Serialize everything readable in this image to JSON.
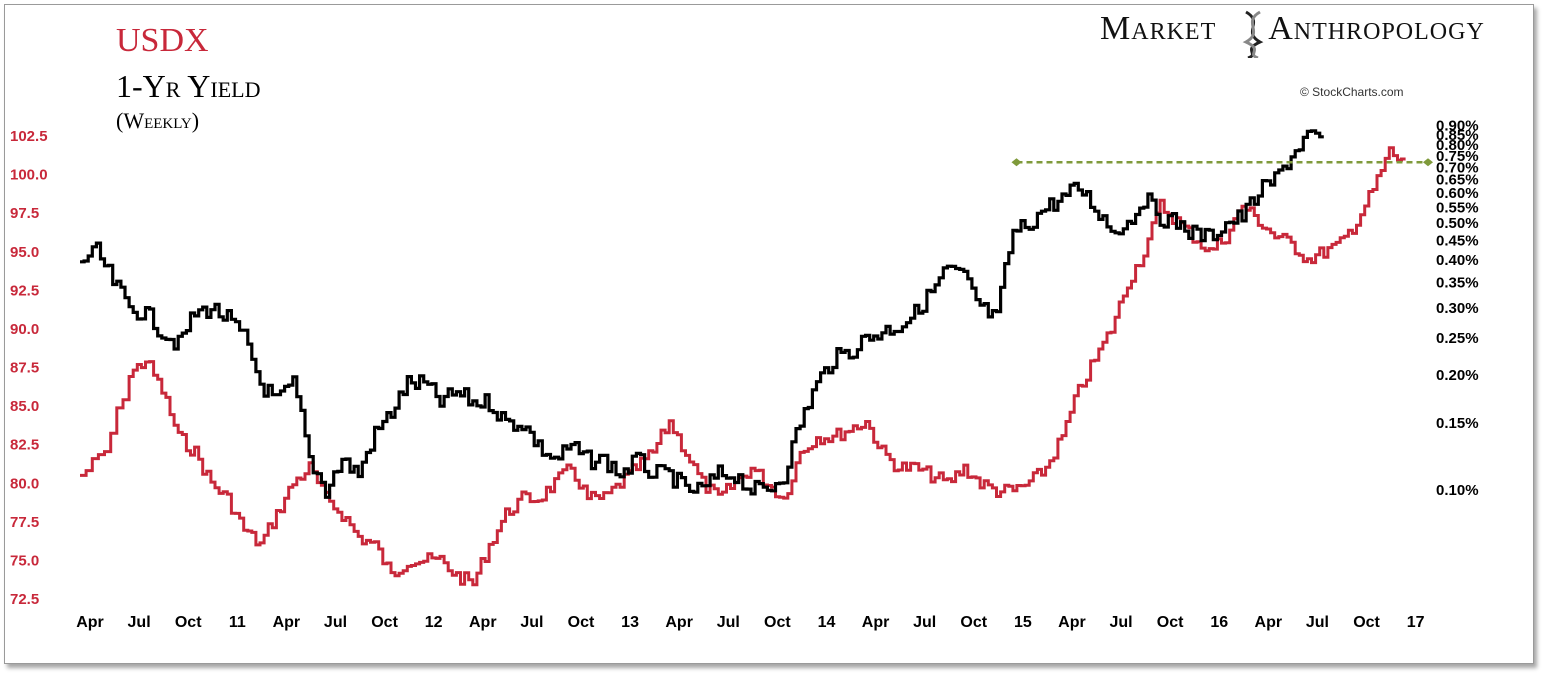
{
  "title": {
    "main": "USDX",
    "series2": "1-Yr Yield",
    "frequency": "(Weekly)"
  },
  "brand": {
    "left": "Market",
    "right": "Anthropology"
  },
  "credit": "© StockCharts.com",
  "colors": {
    "usdx": "#c8283a",
    "yield": "#000000",
    "resistance": "#7f9a3b"
  },
  "chart_data": {
    "type": "line",
    "x_tick_labels": [
      "Apr",
      "Jul",
      "Oct",
      "11",
      "Apr",
      "Jul",
      "Oct",
      "12",
      "Apr",
      "Jul",
      "Oct",
      "13",
      "Apr",
      "Jul",
      "Oct",
      "14",
      "Apr",
      "Jul",
      "Oct",
      "15",
      "Apr",
      "Jul",
      "Oct",
      "16",
      "Apr",
      "Jul",
      "Oct",
      "17"
    ],
    "x_range_months": [
      0,
      82
    ],
    "left_axis": {
      "labels": [
        "102.5",
        "100.0",
        "97.5",
        "95.0",
        "92.5",
        "90.0",
        "87.5",
        "85.0",
        "82.5",
        "80.0",
        "77.5",
        "75.0",
        "72.5"
      ],
      "range": [
        72.5,
        102.5
      ],
      "color": "#c8283a"
    },
    "right_axis": {
      "labels": [
        "0.90%",
        "0.85%",
        "0.80%",
        "0.75%",
        "0.70%",
        "0.65%",
        "0.60%",
        "0.55%",
        "0.50%",
        "0.45%",
        "0.40%",
        "0.35%",
        "0.30%",
        "0.25%",
        "0.20%",
        "0.15%",
        "0.10%"
      ],
      "scale": "log",
      "range": [
        0.06,
        0.92
      ]
    },
    "series": [
      {
        "name": "USDX",
        "axis": "left",
        "points": [
          [
            0,
            80.5
          ],
          [
            1.5,
            82
          ],
          [
            3,
            87
          ],
          [
            4,
            88
          ],
          [
            5,
            86
          ],
          [
            6,
            83
          ],
          [
            7,
            82
          ],
          [
            8,
            80
          ],
          [
            9,
            79
          ],
          [
            10,
            77
          ],
          [
            11,
            76
          ],
          [
            12,
            78
          ],
          [
            13,
            80
          ],
          [
            14,
            81
          ],
          [
            15,
            79
          ],
          [
            16,
            78
          ],
          [
            17,
            76.5
          ],
          [
            18,
            76
          ],
          [
            19,
            74
          ],
          [
            20,
            75
          ],
          [
            21,
            75
          ],
          [
            22,
            75
          ],
          [
            23,
            74
          ],
          [
            24,
            73.5
          ],
          [
            25,
            76
          ],
          [
            26,
            78
          ],
          [
            27,
            79
          ],
          [
            28,
            79
          ],
          [
            29,
            80
          ],
          [
            30,
            81
          ],
          [
            31,
            79
          ],
          [
            32,
            79
          ],
          [
            33,
            80
          ],
          [
            34,
            81
          ],
          [
            35,
            82
          ],
          [
            36,
            84
          ],
          [
            37,
            82
          ],
          [
            38,
            80
          ],
          [
            39,
            79
          ],
          [
            40,
            80
          ],
          [
            41,
            81
          ],
          [
            42,
            80
          ],
          [
            43,
            79
          ],
          [
            44,
            82
          ],
          [
            45,
            83
          ],
          [
            46,
            83
          ],
          [
            47,
            83.5
          ],
          [
            48,
            84
          ],
          [
            49,
            82
          ],
          [
            50,
            81
          ],
          [
            51,
            81
          ],
          [
            52,
            80.5
          ],
          [
            53,
            80
          ],
          [
            54,
            81
          ],
          [
            55,
            80
          ],
          [
            56,
            79.5
          ],
          [
            57,
            79.5
          ],
          [
            58,
            80
          ],
          [
            59,
            81
          ],
          [
            60,
            83
          ],
          [
            61,
            86
          ],
          [
            62,
            88
          ],
          [
            63,
            90
          ],
          [
            64,
            93
          ],
          [
            65,
            95
          ],
          [
            66,
            98
          ],
          [
            67,
            97
          ],
          [
            68,
            96
          ],
          [
            69,
            95
          ],
          [
            70,
            96
          ],
          [
            71,
            98
          ],
          [
            72,
            97
          ],
          [
            73,
            96
          ],
          [
            74,
            95.5
          ],
          [
            75,
            94.5
          ],
          [
            76,
            95
          ],
          [
            77,
            95.5
          ],
          [
            78,
            97
          ],
          [
            79,
            99
          ],
          [
            80,
            101.5
          ],
          [
            81,
            100.5
          ]
        ]
      },
      {
        "name": "1-Yr Yield",
        "axis": "right",
        "points": [
          [
            0,
            0.4
          ],
          [
            1,
            0.42
          ],
          [
            2,
            0.35
          ],
          [
            3,
            0.3
          ],
          [
            4,
            0.29
          ],
          [
            5,
            0.26
          ],
          [
            6,
            0.24
          ],
          [
            7,
            0.29
          ],
          [
            8,
            0.3
          ],
          [
            9,
            0.28
          ],
          [
            10,
            0.25
          ],
          [
            11,
            0.19
          ],
          [
            12,
            0.17
          ],
          [
            13,
            0.19
          ],
          [
            14,
            0.12
          ],
          [
            15,
            0.1
          ],
          [
            16,
            0.12
          ],
          [
            17,
            0.11
          ],
          [
            18,
            0.14
          ],
          [
            19,
            0.16
          ],
          [
            20,
            0.19
          ],
          [
            21,
            0.19
          ],
          [
            22,
            0.17
          ],
          [
            23,
            0.18
          ],
          [
            24,
            0.17
          ],
          [
            25,
            0.17
          ],
          [
            26,
            0.15
          ],
          [
            27,
            0.15
          ],
          [
            28,
            0.13
          ],
          [
            29,
            0.12
          ],
          [
            30,
            0.13
          ],
          [
            31,
            0.12
          ],
          [
            32,
            0.12
          ],
          [
            33,
            0.11
          ],
          [
            34,
            0.12
          ],
          [
            35,
            0.11
          ],
          [
            36,
            0.11
          ],
          [
            37,
            0.1
          ],
          [
            38,
            0.1
          ],
          [
            39,
            0.11
          ],
          [
            40,
            0.11
          ],
          [
            41,
            0.1
          ],
          [
            42,
            0.1
          ],
          [
            43,
            0.11
          ],
          [
            44,
            0.15
          ],
          [
            45,
            0.19
          ],
          [
            46,
            0.22
          ],
          [
            47,
            0.23
          ],
          [
            48,
            0.25
          ],
          [
            49,
            0.26
          ],
          [
            50,
            0.27
          ],
          [
            51,
            0.29
          ],
          [
            52,
            0.33
          ],
          [
            53,
            0.38
          ],
          [
            54,
            0.36
          ],
          [
            55,
            0.3
          ],
          [
            56,
            0.28
          ],
          [
            57,
            0.47
          ],
          [
            58,
            0.5
          ],
          [
            59,
            0.55
          ],
          [
            60,
            0.58
          ],
          [
            61,
            0.62
          ],
          [
            62,
            0.55
          ],
          [
            63,
            0.48
          ],
          [
            64,
            0.5
          ],
          [
            65,
            0.58
          ],
          [
            66,
            0.52
          ],
          [
            67,
            0.5
          ],
          [
            68,
            0.47
          ],
          [
            69,
            0.46
          ],
          [
            70,
            0.5
          ],
          [
            71,
            0.52
          ],
          [
            72,
            0.6
          ],
          [
            73,
            0.65
          ],
          [
            74,
            0.75
          ],
          [
            75,
            0.85
          ],
          [
            76,
            0.8
          ]
        ]
      }
    ],
    "resistance_line": {
      "axis": "left",
      "value": 100.8,
      "x_range": [
        56,
        82
      ]
    }
  }
}
